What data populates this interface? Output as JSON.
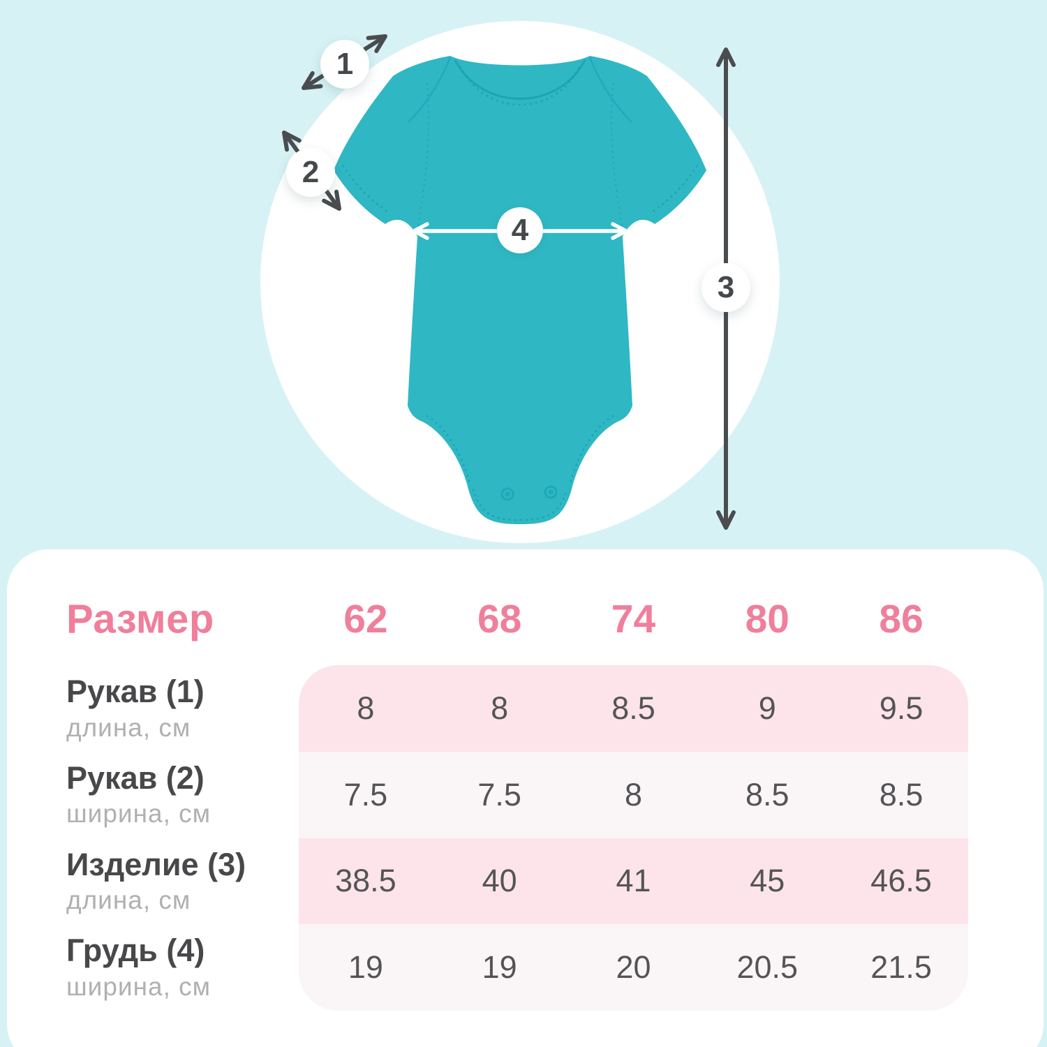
{
  "colors": {
    "background": "#d7f2f5",
    "card": "#ffffff",
    "accent_pink": "#ef7f9b",
    "stripe_pink": "#fce4ea",
    "stripe_light": "#faf6f8",
    "text_dark": "#48484a",
    "text_gray": "#b0b0b3",
    "arrow_dark": "#4a4d4f",
    "arrow_white": "#ffffff",
    "garment_teal": "#2fb7c4",
    "garment_trim": "#17a1b0"
  },
  "diagram": {
    "subject": "baby-bodysuit",
    "markers": [
      {
        "label": "1"
      },
      {
        "label": "2"
      },
      {
        "label": "3"
      },
      {
        "label": "4"
      }
    ]
  },
  "table": {
    "size_label": "Размер",
    "sizes": [
      "62",
      "68",
      "74",
      "80",
      "86"
    ],
    "rows": [
      {
        "name": "Рукав (1)",
        "sub": "длина, см",
        "values": [
          "8",
          "8",
          "8.5",
          "9",
          "9.5"
        ]
      },
      {
        "name": "Рукав (2)",
        "sub": "ширина, см",
        "values": [
          "7.5",
          "7.5",
          "8",
          "8.5",
          "8.5"
        ]
      },
      {
        "name": "Изделие (3)",
        "sub": "длина, см",
        "values": [
          "38.5",
          "40",
          "41",
          "45",
          "46.5"
        ]
      },
      {
        "name": "Грудь (4)",
        "sub": "ширина, см",
        "values": [
          "19",
          "19",
          "20",
          "20.5",
          "21.5"
        ]
      }
    ]
  }
}
